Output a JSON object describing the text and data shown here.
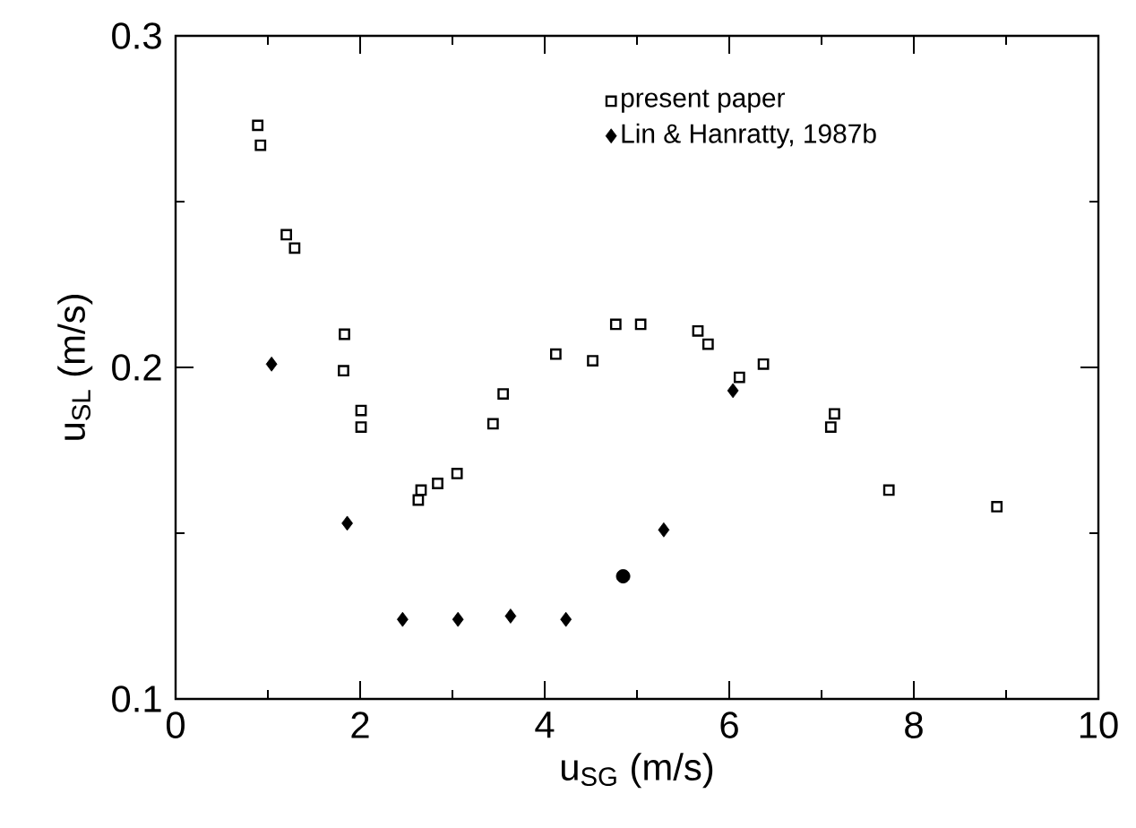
{
  "chart_data": {
    "type": "scatter",
    "xlabel": "u$_{SG}$ (m/s)",
    "ylabel": "u$_{SL}$ (m/s)",
    "xlim": [
      0,
      10
    ],
    "ylim": [
      0.1,
      0.3
    ],
    "xticks": [
      0,
      2,
      4,
      6,
      8,
      10
    ],
    "yticks": [
      0.1,
      0.2,
      0.3
    ],
    "grid": false,
    "legend": "top right",
    "series": [
      {
        "name": "present paper",
        "color": "#000000",
        "marker": "square",
        "x": [
          0.89,
          0.92,
          1.2,
          1.29,
          1.83,
          1.82,
          2.01,
          2.01,
          3.44,
          3.55,
          4.12,
          4.52,
          4.77,
          5.04,
          5.66,
          5.77,
          6.11,
          6.37,
          2.63,
          2.66,
          2.84,
          3.05,
          7.14,
          7.1,
          7.73,
          8.9
        ],
        "values": [
          0.273,
          0.267,
          0.24,
          0.236,
          0.21,
          0.199,
          0.187,
          0.182,
          0.183,
          0.192,
          0.204,
          0.202,
          0.213,
          0.213,
          0.211,
          0.207,
          0.197,
          0.201,
          0.16,
          0.163,
          0.165,
          0.168,
          0.186,
          0.182,
          0.163,
          0.158
        ]
      },
      {
        "name": "Lin & Hanratty, 1987b",
        "color": "#000000",
        "marker": "diamond",
        "x": [
          1.04,
          1.86,
          2.46,
          3.06,
          3.63,
          4.23,
          5.29,
          6.04
        ],
        "values": [
          0.201,
          0.153,
          0.124,
          0.124,
          0.125,
          0.124,
          0.151,
          0.193
        ]
      },
      {
        "color": "#000000",
        "marker": "circle",
        "x": [
          4.85
        ],
        "values": [
          0.137
        ]
      }
    ]
  }
}
